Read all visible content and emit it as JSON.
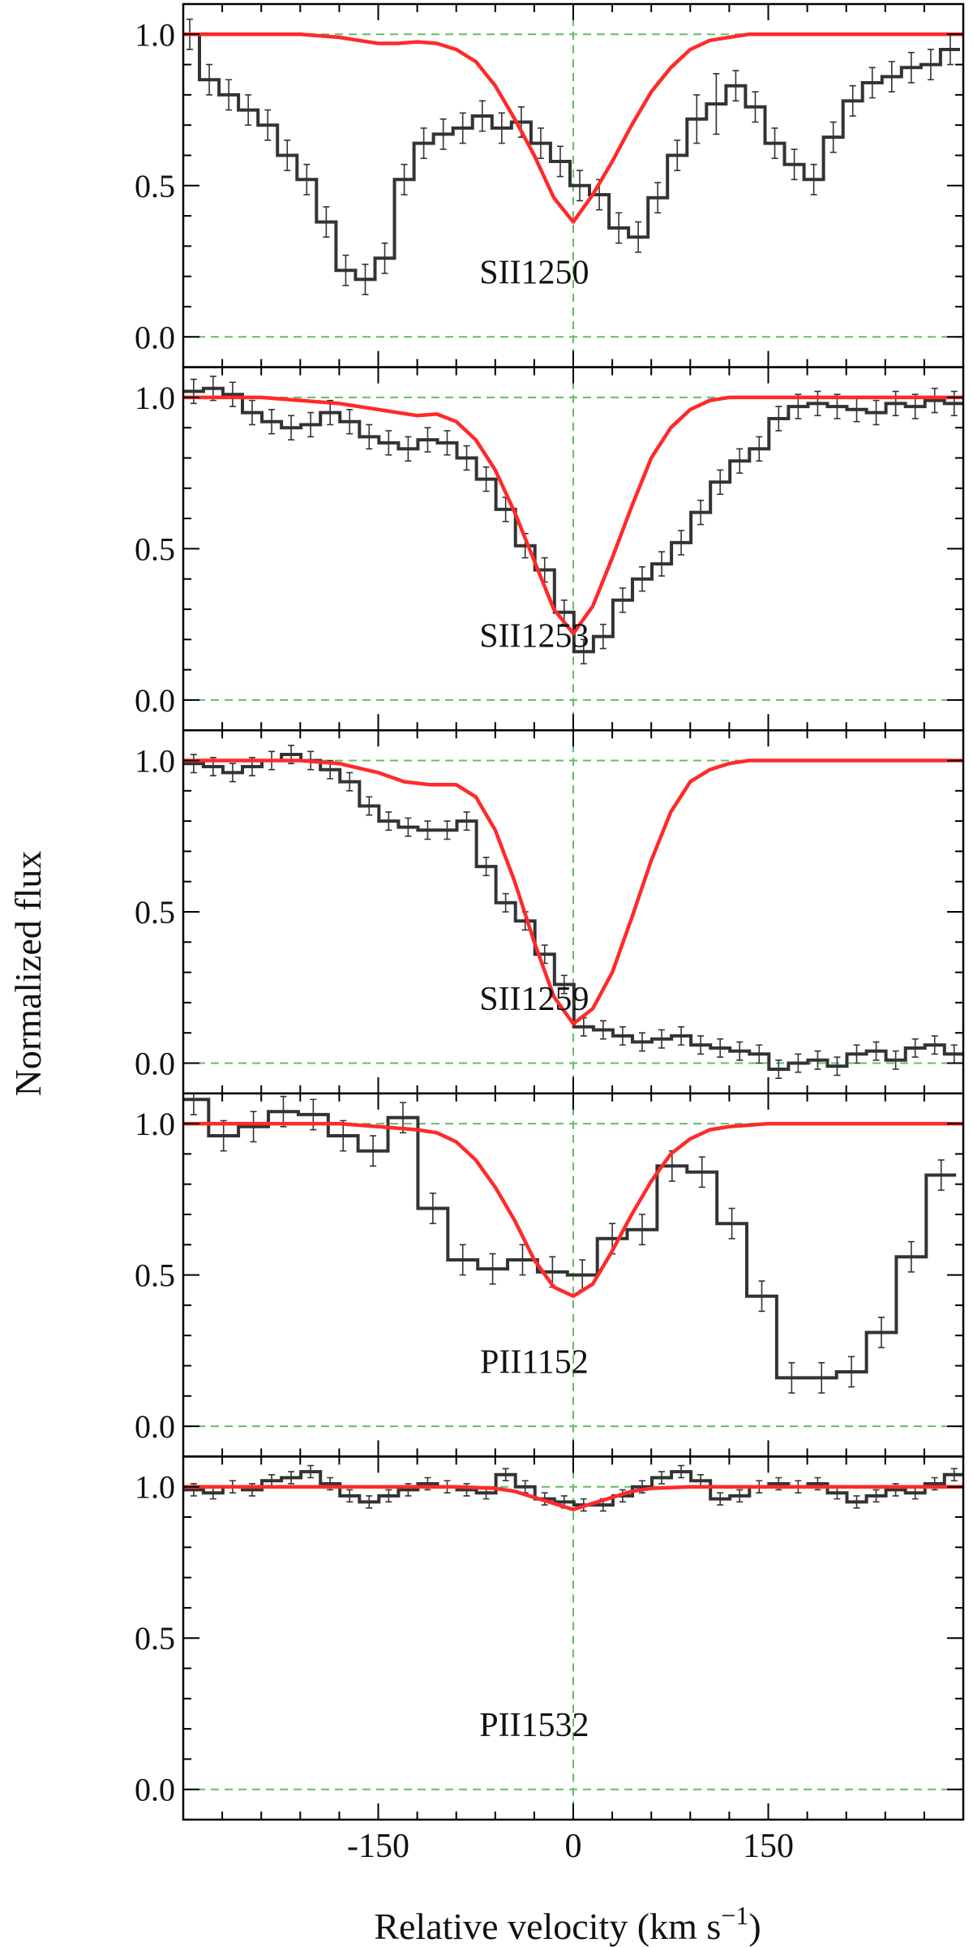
{
  "figure": {
    "ylabel": "Normalized flux",
    "xlabel": "Relative velocity (km s",
    "xlabel_unit_exponent": "−1",
    "xlabel_close": ")",
    "colors": {
      "data": "#333333",
      "model": "#ff2a2a",
      "reference": "#66bb66",
      "axis": "#000000"
    }
  },
  "chart_data": {
    "type": "line",
    "xlabel": "Relative velocity (km s−1)",
    "ylabel": "Normalized flux",
    "xlim": [
      -300,
      300
    ],
    "ylim": [
      -0.1,
      1.1
    ],
    "xticks": [
      -150,
      0,
      150
    ],
    "xtick_labels": [
      "-150",
      "0",
      "150"
    ],
    "yticks": [
      0.0,
      0.5,
      1.0
    ],
    "ytick_labels": [
      "0.0",
      "0.5",
      "1.0"
    ],
    "reference_lines": {
      "horizontal": [
        0.0,
        1.0
      ],
      "vertical": [
        0
      ]
    },
    "panels": [
      {
        "label": "SII1250",
        "series": [
          {
            "kind": "data",
            "x": [
              -295,
              -280,
              -265,
              -250,
              -235,
              -220,
              -205,
              -190,
              -175,
              -160,
              -145,
              -130,
              -115,
              -100,
              -85,
              -70,
              -55,
              -40,
              -25,
              -10,
              5,
              20,
              35,
              50,
              65,
              80,
              95,
              110,
              125,
              140,
              155,
              170,
              185,
              200,
              215,
              230,
              245,
              260,
              275,
              290
            ],
            "y": [
              1.0,
              0.85,
              0.8,
              0.75,
              0.7,
              0.6,
              0.52,
              0.38,
              0.22,
              0.19,
              0.26,
              0.52,
              0.64,
              0.67,
              0.69,
              0.73,
              0.69,
              0.71,
              0.64,
              0.58,
              0.5,
              0.47,
              0.36,
              0.33,
              0.46,
              0.6,
              0.72,
              0.77,
              0.83,
              0.76,
              0.64,
              0.57,
              0.52,
              0.66,
              0.78,
              0.84,
              0.86,
              0.89,
              0.9,
              0.95
            ],
            "err": [
              0.05,
              0.05,
              0.05,
              0.05,
              0.05,
              0.05,
              0.05,
              0.05,
              0.05,
              0.05,
              0.05,
              0.05,
              0.05,
              0.05,
              0.05,
              0.05,
              0.05,
              0.05,
              0.05,
              0.05,
              0.05,
              0.05,
              0.05,
              0.05,
              0.05,
              0.05,
              0.08,
              0.1,
              0.05,
              0.05,
              0.05,
              0.05,
              0.05,
              0.05,
              0.05,
              0.05,
              0.05,
              0.05,
              0.05,
              0.05
            ]
          },
          {
            "kind": "model",
            "x": [
              -300,
              -270,
              -240,
              -210,
              -180,
              -165,
              -150,
              -135,
              -120,
              -105,
              -90,
              -75,
              -60,
              -45,
              -30,
              -15,
              0,
              15,
              30,
              45,
              60,
              75,
              90,
              105,
              120,
              135,
              150,
              165,
              180,
              210,
              240,
              270,
              300
            ],
            "y": [
              1.0,
              1.0,
              1.0,
              1.0,
              0.99,
              0.98,
              0.97,
              0.97,
              0.975,
              0.97,
              0.95,
              0.91,
              0.83,
              0.72,
              0.6,
              0.46,
              0.38,
              0.47,
              0.58,
              0.7,
              0.81,
              0.89,
              0.95,
              0.98,
              0.99,
              1.0,
              1.0,
              1.0,
              1.0,
              1.0,
              1.0,
              1.0,
              1.0
            ]
          }
        ]
      },
      {
        "label": "SII1253",
        "series": [
          {
            "kind": "data",
            "x": [
              -292,
              -277,
              -262,
              -247,
              -232,
              -217,
              -202,
              -187,
              -172,
              -157,
              -142,
              -127,
              -112,
              -97,
              -82,
              -67,
              -52,
              -37,
              -22,
              -7,
              8,
              23,
              38,
              53,
              68,
              83,
              98,
              113,
              128,
              143,
              158,
              173,
              188,
              203,
              218,
              233,
              248,
              263,
              278,
              293
            ],
            "y": [
              1.02,
              1.03,
              1.01,
              0.95,
              0.92,
              0.9,
              0.91,
              0.95,
              0.92,
              0.87,
              0.85,
              0.83,
              0.86,
              0.85,
              0.8,
              0.73,
              0.63,
              0.51,
              0.43,
              0.29,
              0.16,
              0.21,
              0.33,
              0.4,
              0.45,
              0.52,
              0.62,
              0.72,
              0.79,
              0.83,
              0.93,
              0.97,
              0.98,
              0.97,
              0.96,
              0.95,
              0.98,
              0.97,
              0.99,
              0.98
            ],
            "err": [
              0.04,
              0.04,
              0.04,
              0.04,
              0.04,
              0.04,
              0.04,
              0.04,
              0.04,
              0.04,
              0.04,
              0.04,
              0.04,
              0.04,
              0.04,
              0.04,
              0.04,
              0.04,
              0.04,
              0.04,
              0.04,
              0.04,
              0.04,
              0.04,
              0.04,
              0.04,
              0.04,
              0.04,
              0.04,
              0.04,
              0.04,
              0.04,
              0.04,
              0.04,
              0.04,
              0.04,
              0.04,
              0.04,
              0.04,
              0.04
            ]
          },
          {
            "kind": "model",
            "x": [
              -300,
              -270,
              -240,
              -210,
              -180,
              -150,
              -120,
              -105,
              -90,
              -75,
              -60,
              -45,
              -30,
              -15,
              0,
              15,
              30,
              45,
              60,
              75,
              90,
              105,
              120,
              150,
              180,
              210,
              240,
              270,
              300
            ],
            "y": [
              1.0,
              1.0,
              1.0,
              0.99,
              0.98,
              0.96,
              0.94,
              0.945,
              0.92,
              0.86,
              0.76,
              0.62,
              0.46,
              0.3,
              0.22,
              0.31,
              0.47,
              0.64,
              0.8,
              0.9,
              0.96,
              0.99,
              1.0,
              1.0,
              1.0,
              1.0,
              1.0,
              1.0,
              1.0
            ]
          }
        ]
      },
      {
        "label": "SII1259",
        "series": [
          {
            "kind": "data",
            "x": [
              -292,
              -277,
              -262,
              -247,
              -232,
              -217,
              -202,
              -187,
              -172,
              -157,
              -142,
              -127,
              -112,
              -97,
              -82,
              -67,
              -52,
              -37,
              -22,
              -7,
              8,
              23,
              38,
              53,
              68,
              83,
              98,
              113,
              128,
              143,
              158,
              173,
              188,
              203,
              218,
              233,
              248,
              263,
              278,
              293
            ],
            "y": [
              0.99,
              0.98,
              0.96,
              0.98,
              1.0,
              1.02,
              1.0,
              0.97,
              0.93,
              0.85,
              0.8,
              0.78,
              0.77,
              0.77,
              0.8,
              0.65,
              0.53,
              0.47,
              0.36,
              0.26,
              0.12,
              0.11,
              0.09,
              0.07,
              0.08,
              0.09,
              0.06,
              0.05,
              0.04,
              0.03,
              -0.02,
              0.0,
              0.01,
              -0.01,
              0.03,
              0.04,
              0.01,
              0.05,
              0.06,
              0.03
            ],
            "err": [
              0.03,
              0.03,
              0.03,
              0.03,
              0.03,
              0.03,
              0.03,
              0.03,
              0.03,
              0.03,
              0.03,
              0.03,
              0.03,
              0.03,
              0.03,
              0.03,
              0.03,
              0.03,
              0.03,
              0.03,
              0.03,
              0.03,
              0.03,
              0.03,
              0.03,
              0.03,
              0.03,
              0.03,
              0.03,
              0.03,
              0.03,
              0.03,
              0.03,
              0.03,
              0.03,
              0.03,
              0.03,
              0.03,
              0.03,
              0.03
            ]
          },
          {
            "kind": "model",
            "x": [
              -300,
              -270,
              -240,
              -210,
              -180,
              -150,
              -130,
              -110,
              -90,
              -75,
              -60,
              -45,
              -30,
              -15,
              0,
              15,
              30,
              45,
              60,
              75,
              90,
              105,
              120,
              135,
              150,
              180,
              210,
              240,
              270,
              300
            ],
            "y": [
              1.0,
              1.0,
              1.0,
              1.0,
              0.99,
              0.96,
              0.93,
              0.92,
              0.92,
              0.88,
              0.77,
              0.6,
              0.4,
              0.22,
              0.13,
              0.18,
              0.3,
              0.48,
              0.67,
              0.83,
              0.93,
              0.97,
              0.99,
              1.0,
              1.0,
              1.0,
              1.0,
              1.0,
              1.0,
              1.0
            ]
          }
        ]
      },
      {
        "label": "PII1152",
        "series": [
          {
            "kind": "data",
            "x": [
              -292,
              -269,
              -246,
              -223,
              -200,
              -177,
              -154,
              -131,
              -108,
              -85,
              -62,
              -39,
              -16,
              7,
              30,
              53,
              76,
              99,
              122,
              145,
              168,
              191,
              214,
              237,
              260,
              283
            ],
            "y": [
              1.08,
              0.96,
              0.99,
              1.04,
              1.03,
              0.96,
              0.91,
              1.02,
              0.72,
              0.55,
              0.52,
              0.55,
              0.51,
              0.5,
              0.62,
              0.65,
              0.86,
              0.84,
              0.67,
              0.43,
              0.16,
              0.16,
              0.18,
              0.31,
              0.56,
              0.83
            ],
            "err": [
              0.05,
              0.05,
              0.05,
              0.05,
              0.05,
              0.05,
              0.05,
              0.05,
              0.05,
              0.05,
              0.05,
              0.05,
              0.05,
              0.05,
              0.05,
              0.05,
              0.05,
              0.05,
              0.05,
              0.05,
              0.05,
              0.05,
              0.05,
              0.05,
              0.05,
              0.05
            ]
          },
          {
            "kind": "model",
            "x": [
              -300,
              -270,
              -240,
              -210,
              -180,
              -150,
              -120,
              -105,
              -90,
              -75,
              -60,
              -45,
              -30,
              -15,
              0,
              15,
              30,
              45,
              60,
              75,
              90,
              105,
              120,
              150,
              180,
              210,
              240,
              270,
              300
            ],
            "y": [
              1.0,
              1.0,
              1.0,
              1.0,
              1.0,
              0.99,
              0.98,
              0.97,
              0.94,
              0.88,
              0.79,
              0.68,
              0.55,
              0.46,
              0.43,
              0.47,
              0.58,
              0.7,
              0.81,
              0.9,
              0.95,
              0.98,
              0.99,
              1.0,
              1.0,
              1.0,
              1.0,
              1.0,
              1.0
            ]
          }
        ]
      },
      {
        "label": "PII1532",
        "series": [
          {
            "kind": "data",
            "x": [
              -292,
              -277,
              -262,
              -247,
              -232,
              -217,
              -202,
              -187,
              -172,
              -157,
              -142,
              -127,
              -112,
              -97,
              -82,
              -67,
              -52,
              -37,
              -22,
              -7,
              8,
              23,
              38,
              53,
              68,
              83,
              98,
              113,
              128,
              143,
              158,
              173,
              188,
              203,
              218,
              233,
              248,
              263,
              278,
              293
            ],
            "y": [
              0.99,
              0.98,
              1.0,
              0.99,
              1.02,
              1.03,
              1.05,
              1.01,
              0.97,
              0.95,
              0.97,
              0.99,
              1.01,
              1.0,
              0.99,
              0.98,
              1.04,
              1.0,
              0.96,
              0.95,
              0.94,
              0.94,
              0.97,
              1.0,
              1.03,
              1.05,
              1.02,
              0.96,
              0.97,
              1.0,
              1.01,
              1.0,
              1.01,
              0.98,
              0.95,
              0.97,
              0.99,
              0.98,
              1.01,
              1.04
            ],
            "err": [
              0.02,
              0.02,
              0.02,
              0.02,
              0.02,
              0.02,
              0.02,
              0.02,
              0.02,
              0.02,
              0.02,
              0.02,
              0.02,
              0.02,
              0.02,
              0.02,
              0.02,
              0.02,
              0.02,
              0.02,
              0.02,
              0.02,
              0.02,
              0.02,
              0.02,
              0.02,
              0.02,
              0.02,
              0.02,
              0.02,
              0.02,
              0.02,
              0.02,
              0.02,
              0.02,
              0.02,
              0.02,
              0.02,
              0.02,
              0.02
            ]
          },
          {
            "kind": "model",
            "x": [
              -300,
              -240,
              -180,
              -120,
              -90,
              -60,
              -45,
              -30,
              -15,
              0,
              15,
              30,
              45,
              60,
              90,
              120,
              180,
              240,
              300
            ],
            "y": [
              1.0,
              1.0,
              1.0,
              1.0,
              1.0,
              0.995,
              0.985,
              0.965,
              0.945,
              0.925,
              0.945,
              0.965,
              0.985,
              0.995,
              1.0,
              1.0,
              1.0,
              1.0,
              1.0
            ]
          }
        ]
      }
    ]
  }
}
